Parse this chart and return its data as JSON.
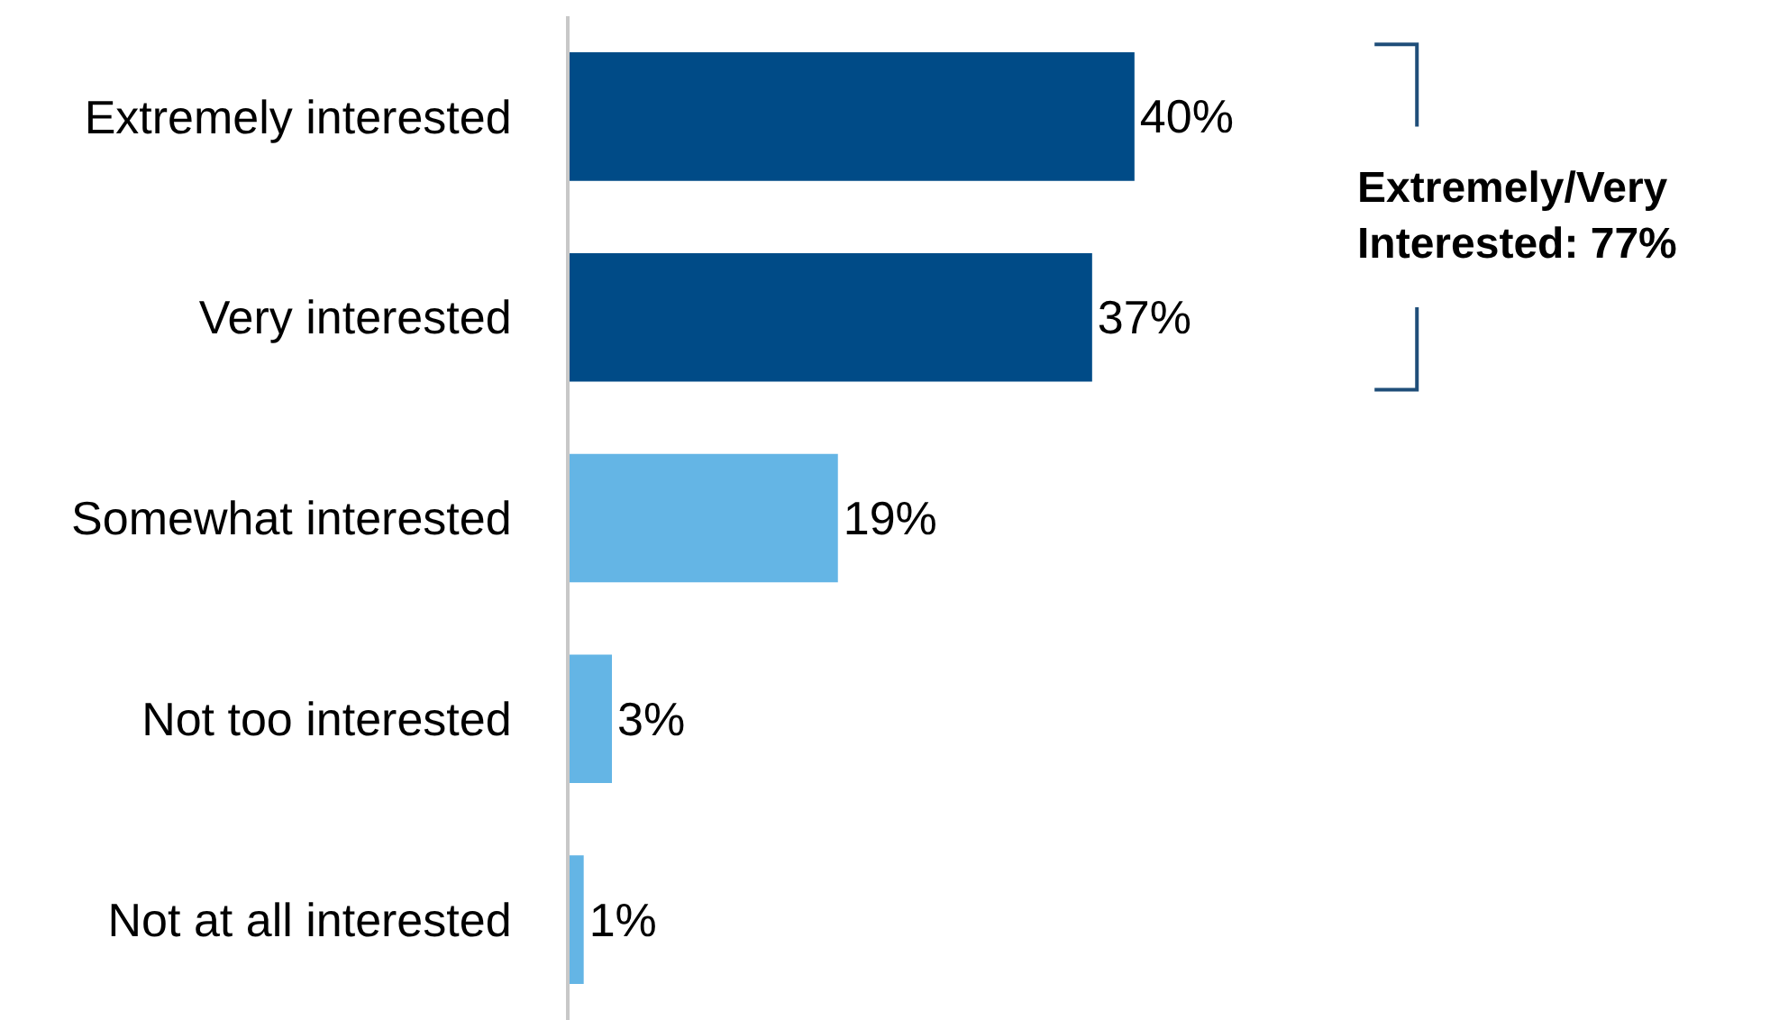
{
  "chart_data": {
    "type": "bar",
    "orientation": "horizontal",
    "categories": [
      "Extremely interested",
      "Very interested",
      "Somewhat interested",
      "Not too interested",
      "Not at all interested"
    ],
    "values": [
      40,
      37,
      19,
      3,
      1
    ],
    "colors": [
      "#004b87",
      "#004b87",
      "#64b5e5",
      "#64b5e5",
      "#64b5e5"
    ],
    "xlim": [
      0,
      85
    ],
    "tick_labels": "y",
    "value_labels": [
      "40%",
      "37%",
      "19%",
      "3%",
      "1%"
    ],
    "annotations": [
      "Extremely/Very\nInterested: 77%"
    ]
  }
}
